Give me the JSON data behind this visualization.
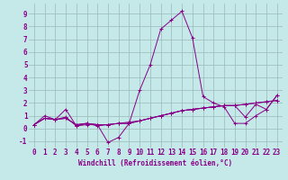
{
  "xlabel": "Windchill (Refroidissement éolien,°C)",
  "background_color": "#c5e8e8",
  "line_color": "#880088",
  "grid_color": "#9ab8b8",
  "xlim": [
    -0.5,
    23.5
  ],
  "ylim": [
    -1.5,
    9.8
  ],
  "yticks": [
    -1,
    0,
    1,
    2,
    3,
    4,
    5,
    6,
    7,
    8,
    9
  ],
  "xticks": [
    0,
    1,
    2,
    3,
    4,
    5,
    6,
    7,
    8,
    9,
    10,
    11,
    12,
    13,
    14,
    15,
    16,
    17,
    18,
    19,
    20,
    21,
    22,
    23
  ],
  "series": [
    [
      0.3,
      1.0,
      0.7,
      1.5,
      0.2,
      0.3,
      0.3,
      -1.1,
      -0.7,
      0.4,
      3.0,
      5.0,
      7.8,
      8.5,
      9.2,
      7.1,
      2.5,
      2.0,
      1.7,
      0.4,
      0.4,
      1.0,
      1.5,
      2.6
    ],
    [
      0.3,
      0.8,
      0.7,
      0.8,
      0.3,
      0.4,
      0.3,
      0.3,
      0.4,
      0.5,
      0.6,
      0.8,
      1.0,
      1.2,
      1.4,
      1.5,
      1.6,
      1.7,
      1.8,
      1.8,
      1.9,
      2.0,
      2.1,
      2.2
    ],
    [
      0.3,
      0.8,
      0.7,
      0.9,
      0.2,
      0.4,
      0.2,
      0.3,
      0.4,
      0.4,
      0.6,
      0.8,
      1.0,
      1.2,
      1.4,
      1.5,
      1.6,
      1.7,
      1.8,
      1.8,
      1.9,
      2.0,
      2.1,
      2.2
    ],
    [
      0.3,
      0.8,
      0.7,
      0.8,
      0.3,
      0.4,
      0.3,
      0.3,
      0.4,
      0.4,
      0.6,
      0.8,
      1.0,
      1.2,
      1.4,
      1.5,
      1.6,
      1.7,
      1.8,
      1.8,
      0.9,
      1.9,
      1.5,
      2.6
    ]
  ],
  "tick_fontsize": 5.5,
  "xlabel_fontsize": 5.5
}
